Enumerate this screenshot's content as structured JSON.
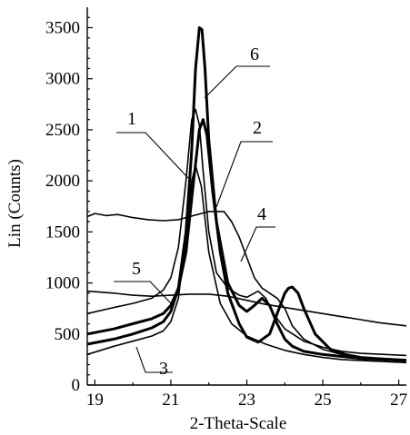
{
  "chart_data": {
    "type": "line",
    "xlabel": "2-Theta-Scale",
    "ylabel": "Lin (Counts)",
    "xlim": [
      18.8,
      27.2
    ],
    "ylim": [
      0,
      3700
    ],
    "x_ticks": [
      19,
      21,
      23,
      25,
      27
    ],
    "x_tick_labels": [
      "19",
      "21",
      "23",
      "25",
      "27"
    ],
    "y_ticks": [
      0,
      500,
      1000,
      1500,
      2000,
      2500,
      3000,
      3500
    ],
    "y_tick_labels": [
      "0",
      "500",
      "1000",
      "1500",
      "2000",
      "2500",
      "3000",
      "3500"
    ],
    "grid": false,
    "legend": "none",
    "series": [
      {
        "name": "1",
        "bold": false,
        "x": [
          18.8,
          19.5,
          20.0,
          20.5,
          20.8,
          21.0,
          21.2,
          21.4,
          21.55,
          21.65,
          21.75,
          21.85,
          22.0,
          22.2,
          22.5,
          22.8,
          23.0,
          23.2,
          23.3,
          23.5,
          23.7,
          24.0,
          24.5,
          25.0,
          25.5,
          26.0,
          27.2
        ],
        "y": [
          700,
          760,
          800,
          850,
          930,
          1050,
          1350,
          2000,
          2600,
          2700,
          2550,
          2100,
          1500,
          1100,
          950,
          880,
          860,
          900,
          920,
          850,
          700,
          550,
          430,
          370,
          330,
          310,
          290
        ]
      },
      {
        "name": "2",
        "bold": true,
        "x": [
          18.8,
          19.5,
          20.0,
          20.5,
          20.8,
          21.0,
          21.2,
          21.4,
          21.6,
          21.75,
          21.85,
          21.95,
          22.1,
          22.3,
          22.5,
          22.8,
          23.0,
          23.3,
          23.6,
          23.8,
          24.0,
          24.1,
          24.2,
          24.35,
          24.5,
          24.8,
          25.2,
          25.6,
          26.0,
          27.2
        ],
        "y": [
          500,
          550,
          600,
          650,
          700,
          780,
          950,
          1300,
          2000,
          2500,
          2600,
          2450,
          1900,
          1300,
          900,
          600,
          470,
          420,
          500,
          700,
          900,
          950,
          960,
          900,
          750,
          500,
          350,
          300,
          270,
          240
        ]
      },
      {
        "name": "3",
        "bold": false,
        "x": [
          18.8,
          19.5,
          20.0,
          20.5,
          20.8,
          21.0,
          21.2,
          21.4,
          21.55,
          21.65,
          21.8,
          22.0,
          22.3,
          22.6,
          23.0,
          23.5,
          24.0,
          24.5,
          25.0,
          25.5,
          26.0,
          27.2
        ],
        "y": [
          300,
          380,
          430,
          480,
          530,
          620,
          850,
          1500,
          2000,
          2150,
          1950,
          1300,
          800,
          600,
          480,
          400,
          340,
          300,
          270,
          250,
          240,
          220
        ]
      },
      {
        "name": "4",
        "bold": false,
        "x": [
          18.8,
          19.0,
          19.3,
          19.6,
          20.0,
          20.4,
          20.8,
          21.2,
          21.6,
          22.0,
          22.4,
          22.6,
          22.8,
          23.0,
          23.2,
          23.4,
          23.6,
          23.8,
          24.0,
          24.2,
          24.5,
          25.0,
          25.5,
          26.0,
          27.2
        ],
        "y": [
          1650,
          1680,
          1660,
          1670,
          1640,
          1620,
          1610,
          1620,
          1660,
          1700,
          1700,
          1600,
          1450,
          1250,
          1050,
          950,
          900,
          850,
          750,
          580,
          450,
          350,
          300,
          270,
          250
        ]
      },
      {
        "name": "5",
        "bold": false,
        "x": [
          18.8,
          19.5,
          20.0,
          20.5,
          21.0,
          21.5,
          22.0,
          22.5,
          23.0,
          23.5,
          24.0,
          24.5,
          25.0,
          25.5,
          26.0,
          26.5,
          27.2
        ],
        "y": [
          920,
          900,
          880,
          870,
          880,
          890,
          890,
          870,
          830,
          790,
          760,
          730,
          700,
          670,
          640,
          610,
          580
        ]
      },
      {
        "name": "6",
        "bold": true,
        "x": [
          18.8,
          19.5,
          20.0,
          20.5,
          20.8,
          21.0,
          21.2,
          21.4,
          21.55,
          21.65,
          21.75,
          21.82,
          21.9,
          22.0,
          22.2,
          22.5,
          22.8,
          23.0,
          23.2,
          23.4,
          23.6,
          23.8,
          24.0,
          24.2,
          24.5,
          25.0,
          25.5,
          26.0,
          27.2
        ],
        "y": [
          400,
          450,
          500,
          560,
          620,
          720,
          950,
          1500,
          2300,
          3100,
          3500,
          3480,
          3100,
          2400,
          1600,
          1000,
          780,
          720,
          780,
          850,
          780,
          600,
          450,
          380,
          330,
          300,
          280,
          260,
          240
        ]
      }
    ],
    "annotations": [
      "1",
      "2",
      "3",
      "4",
      "5",
      "6"
    ]
  }
}
